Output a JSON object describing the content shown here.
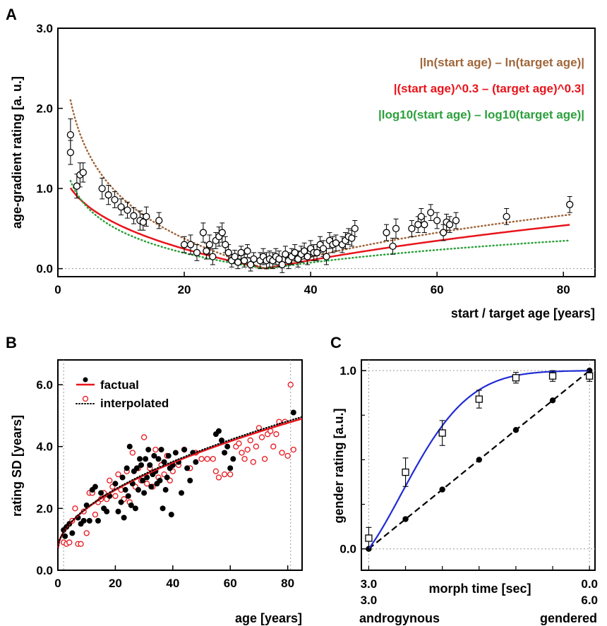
{
  "chart_data": [
    {
      "panel": "A",
      "type": "scatter",
      "xlabel": "start / target age [years]",
      "ylabel": "age-gradient rating [a. u.]",
      "xlim": [
        0,
        85
      ],
      "ylim": [
        -0.1,
        3.0
      ],
      "xticks": [
        0,
        20,
        40,
        60,
        80
      ],
      "yticks": [
        0.0,
        1.0,
        2.0,
        3.0
      ],
      "ytick_labels": [
        "0.0",
        "1.0",
        "2.0",
        "3.0"
      ],
      "target_age": 33,
      "baseline": 0.0,
      "legend_position": "top-right",
      "series": [
        {
          "name": "|ln(start age) – ln(target age)|",
          "kind": "curve",
          "style": "dotted",
          "color": "#a0663a",
          "transform": "ln",
          "scale": 0.75
        },
        {
          "name": "|(start age)^0.3 – (target age)^0.3|",
          "kind": "curve",
          "style": "solid",
          "color": "#e8141b",
          "transform": "pow0.3",
          "scale": 0.62
        },
        {
          "name": "|log10(start age) – log10(target age)|",
          "kind": "curve",
          "style": "dotted",
          "color": "#2ba03b",
          "transform": "log10",
          "scale": 0.9
        }
      ],
      "points": [
        {
          "x": 2,
          "y": 1.45,
          "e": 0.15
        },
        {
          "x": 2,
          "y": 1.67,
          "e": 0.2
        },
        {
          "x": 3,
          "y": 1.03,
          "e": 0.15
        },
        {
          "x": 3.5,
          "y": 1.17,
          "e": 0.15
        },
        {
          "x": 4,
          "y": 1.2,
          "e": 0.12
        },
        {
          "x": 7,
          "y": 1.0,
          "e": 0.13
        },
        {
          "x": 8,
          "y": 0.92,
          "e": 0.12
        },
        {
          "x": 9,
          "y": 0.86,
          "e": 0.1
        },
        {
          "x": 10,
          "y": 0.77,
          "e": 0.1
        },
        {
          "x": 11,
          "y": 0.73,
          "e": 0.1
        },
        {
          "x": 12,
          "y": 0.66,
          "e": 0.1
        },
        {
          "x": 13,
          "y": 0.6,
          "e": 0.12
        },
        {
          "x": 13.5,
          "y": 0.58,
          "e": 0.1
        },
        {
          "x": 14,
          "y": 0.65,
          "e": 0.12
        },
        {
          "x": 16,
          "y": 0.6,
          "e": 0.1
        },
        {
          "x": 20,
          "y": 0.3,
          "e": 0.1
        },
        {
          "x": 21,
          "y": 0.3,
          "e": 0.12
        },
        {
          "x": 22,
          "y": 0.2,
          "e": 0.1
        },
        {
          "x": 23,
          "y": 0.45,
          "e": 0.12
        },
        {
          "x": 23.5,
          "y": 0.22,
          "e": 0.1
        },
        {
          "x": 24,
          "y": 0.3,
          "e": 0.12
        },
        {
          "x": 24.5,
          "y": 0.15,
          "e": 0.1
        },
        {
          "x": 25,
          "y": 0.35,
          "e": 0.1
        },
        {
          "x": 25.5,
          "y": 0.4,
          "e": 0.12
        },
        {
          "x": 26,
          "y": 0.45,
          "e": 0.12
        },
        {
          "x": 26.5,
          "y": 0.3,
          "e": 0.1
        },
        {
          "x": 27,
          "y": 0.2,
          "e": 0.1
        },
        {
          "x": 27.5,
          "y": 0.1,
          "e": 0.08
        },
        {
          "x": 28,
          "y": 0.15,
          "e": 0.08
        },
        {
          "x": 28.5,
          "y": 0.08,
          "e": 0.08
        },
        {
          "x": 29,
          "y": 0.2,
          "e": 0.08
        },
        {
          "x": 29.5,
          "y": 0.1,
          "e": 0.08
        },
        {
          "x": 30,
          "y": 0.22,
          "e": 0.08
        },
        {
          "x": 30.5,
          "y": 0.05,
          "e": 0.08
        },
        {
          "x": 31,
          "y": 0.12,
          "e": 0.08
        },
        {
          "x": 32,
          "y": 0.1,
          "e": 0.1
        },
        {
          "x": 32.5,
          "y": 0.15,
          "e": 0.1
        },
        {
          "x": 33,
          "y": 0.1,
          "e": 0.1
        },
        {
          "x": 33.5,
          "y": 0.12,
          "e": 0.1
        },
        {
          "x": 34,
          "y": 0.1,
          "e": 0.1
        },
        {
          "x": 34.5,
          "y": 0.15,
          "e": 0.1
        },
        {
          "x": 35,
          "y": 0.12,
          "e": 0.1
        },
        {
          "x": 35.5,
          "y": 0.05,
          "e": 0.1
        },
        {
          "x": 36,
          "y": 0.18,
          "e": 0.1
        },
        {
          "x": 36.5,
          "y": 0.1,
          "e": 0.1
        },
        {
          "x": 37,
          "y": 0.15,
          "e": 0.1
        },
        {
          "x": 37.5,
          "y": 0.2,
          "e": 0.1
        },
        {
          "x": 38,
          "y": 0.12,
          "e": 0.1
        },
        {
          "x": 38.5,
          "y": 0.18,
          "e": 0.1
        },
        {
          "x": 39,
          "y": 0.22,
          "e": 0.1
        },
        {
          "x": 39.5,
          "y": 0.15,
          "e": 0.1
        },
        {
          "x": 40,
          "y": 0.25,
          "e": 0.1
        },
        {
          "x": 40.5,
          "y": 0.2,
          "e": 0.1
        },
        {
          "x": 41,
          "y": 0.2,
          "e": 0.1
        },
        {
          "x": 41.5,
          "y": 0.3,
          "e": 0.1
        },
        {
          "x": 42,
          "y": 0.25,
          "e": 0.1
        },
        {
          "x": 42.5,
          "y": 0.15,
          "e": 0.1
        },
        {
          "x": 43,
          "y": 0.35,
          "e": 0.1
        },
        {
          "x": 43.5,
          "y": 0.3,
          "e": 0.1
        },
        {
          "x": 44,
          "y": 0.32,
          "e": 0.1
        },
        {
          "x": 45,
          "y": 0.3,
          "e": 0.1
        },
        {
          "x": 45.5,
          "y": 0.35,
          "e": 0.1
        },
        {
          "x": 46,
          "y": 0.4,
          "e": 0.1
        },
        {
          "x": 46.5,
          "y": 0.38,
          "e": 0.1
        },
        {
          "x": 47,
          "y": 0.5,
          "e": 0.1
        },
        {
          "x": 52,
          "y": 0.45,
          "e": 0.1
        },
        {
          "x": 53,
          "y": 0.28,
          "e": 0.1
        },
        {
          "x": 53.5,
          "y": 0.5,
          "e": 0.12
        },
        {
          "x": 56,
          "y": 0.5,
          "e": 0.1
        },
        {
          "x": 57,
          "y": 0.55,
          "e": 0.1
        },
        {
          "x": 57.5,
          "y": 0.65,
          "e": 0.1
        },
        {
          "x": 58,
          "y": 0.55,
          "e": 0.1
        },
        {
          "x": 59,
          "y": 0.7,
          "e": 0.1
        },
        {
          "x": 60,
          "y": 0.6,
          "e": 0.1
        },
        {
          "x": 61,
          "y": 0.45,
          "e": 0.1
        },
        {
          "x": 61.5,
          "y": 0.58,
          "e": 0.1
        },
        {
          "x": 62,
          "y": 0.55,
          "e": 0.1
        },
        {
          "x": 63,
          "y": 0.6,
          "e": 0.1
        },
        {
          "x": 71,
          "y": 0.65,
          "e": 0.1
        },
        {
          "x": 81,
          "y": 0.8,
          "e": 0.1
        }
      ]
    },
    {
      "panel": "B",
      "type": "scatter",
      "xlabel": "age [years]",
      "ylabel": "rating SD [years]",
      "xlim": [
        0,
        85
      ],
      "ylim": [
        0,
        6.8
      ],
      "xticks": [
        0,
        20,
        40,
        60,
        80
      ],
      "yticks": [
        0.0,
        2.0,
        4.0,
        6.0
      ],
      "ytick_labels": [
        "0.0",
        "2.0",
        "4.0",
        "6.0"
      ],
      "vlines": [
        2,
        81
      ],
      "legend_position": "top-left",
      "legend": [
        {
          "name": "factual",
          "marker": "filled-circle",
          "line": "solid",
          "color": "#e8141b"
        },
        {
          "name": "interpolated",
          "marker": "open-circle",
          "line": "dotted",
          "color": "#000000"
        }
      ],
      "fit_factual": {
        "a": 0.7,
        "b": 0.365,
        "p": 0.55,
        "color": "#e8141b"
      },
      "fit_interpolated": {
        "a": 0.7,
        "b": 0.37,
        "p": 0.55,
        "color": "#000000"
      },
      "factual_points": [
        [
          2,
          1.3
        ],
        [
          2.5,
          1.1
        ],
        [
          3,
          1.4
        ],
        [
          4,
          1.5
        ],
        [
          5,
          1.2
        ],
        [
          7,
          1.7
        ],
        [
          8,
          1.5
        ],
        [
          9,
          1.6
        ],
        [
          10,
          2.1
        ],
        [
          11,
          1.6
        ],
        [
          12,
          2.6
        ],
        [
          13,
          2.7
        ],
        [
          14,
          1.6
        ],
        [
          15,
          2.5
        ],
        [
          16,
          2.0
        ],
        [
          17,
          1.9
        ],
        [
          18,
          2.4
        ],
        [
          20,
          2.8
        ],
        [
          21,
          1.9
        ],
        [
          22,
          2.2
        ],
        [
          22.5,
          3.0
        ],
        [
          23,
          1.7
        ],
        [
          23.5,
          2.6
        ],
        [
          24,
          3.3
        ],
        [
          24.5,
          2.4
        ],
        [
          25,
          4.0
        ],
        [
          25.5,
          2.1
        ],
        [
          26,
          2.8
        ],
        [
          26.5,
          3.2
        ],
        [
          27,
          2.0
        ],
        [
          27.5,
          3.3
        ],
        [
          28,
          2.6
        ],
        [
          28.5,
          3.6
        ],
        [
          29,
          3.4
        ],
        [
          29.5,
          2.9
        ],
        [
          30,
          2.5
        ],
        [
          30.5,
          3.6
        ],
        [
          31,
          3.0
        ],
        [
          31.5,
          3.9
        ],
        [
          32,
          3.4
        ],
        [
          32.5,
          2.7
        ],
        [
          33,
          3.1
        ],
        [
          33.5,
          3.7
        ],
        [
          34,
          3.2
        ],
        [
          34.5,
          2.8
        ],
        [
          35,
          3.6
        ],
        [
          35.5,
          2.9
        ],
        [
          36,
          3.9
        ],
        [
          36.5,
          2.0
        ],
        [
          37,
          3.5
        ],
        [
          37.5,
          2.6
        ],
        [
          38,
          3.0
        ],
        [
          38.5,
          3.7
        ],
        [
          39,
          3.3
        ],
        [
          39.5,
          1.8
        ],
        [
          40,
          3.4
        ],
        [
          41,
          3.8
        ],
        [
          42,
          3.5
        ],
        [
          43,
          2.5
        ],
        [
          44,
          3.9
        ],
        [
          45,
          3.3
        ],
        [
          46,
          2.9
        ],
        [
          47,
          3.8
        ],
        [
          48,
          3.5
        ],
        [
          55,
          4.4
        ],
        [
          56,
          4.5
        ],
        [
          57,
          4.2
        ],
        [
          58,
          3.8
        ],
        [
          59,
          4.0
        ],
        [
          60,
          3.3
        ],
        [
          61,
          3.6
        ],
        [
          82,
          5.1
        ]
      ],
      "interpolated_points": [
        [
          2,
          0.9
        ],
        [
          3,
          0.85
        ],
        [
          4,
          0.9
        ],
        [
          5,
          1.6
        ],
        [
          6,
          2.0
        ],
        [
          7,
          0.85
        ],
        [
          8,
          0.85
        ],
        [
          9,
          1.9
        ],
        [
          10,
          1.2
        ],
        [
          11,
          2.5
        ],
        [
          12,
          2.5
        ],
        [
          13,
          1.8
        ],
        [
          14,
          2.2
        ],
        [
          15,
          2.3
        ],
        [
          16,
          2.5
        ],
        [
          17,
          2.3
        ],
        [
          18,
          2.9
        ],
        [
          19,
          2.7
        ],
        [
          20,
          2.4
        ],
        [
          21,
          3.1
        ],
        [
          22,
          2.6
        ],
        [
          23,
          2.3
        ],
        [
          24,
          3.2
        ],
        [
          25,
          2.2
        ],
        [
          26,
          3.8
        ],
        [
          27,
          2.7
        ],
        [
          28,
          3.3
        ],
        [
          29,
          2.9
        ],
        [
          30,
          4.3
        ],
        [
          31,
          2.8
        ],
        [
          32,
          3.3
        ],
        [
          33,
          2.7
        ],
        [
          34,
          3.9
        ],
        [
          35,
          3.0
        ],
        [
          36,
          3.4
        ],
        [
          37,
          3.1
        ],
        [
          38,
          3.7
        ],
        [
          39,
          2.9
        ],
        [
          40,
          3.2
        ],
        [
          42,
          3.4
        ],
        [
          44,
          3.9
        ],
        [
          46,
          3.3
        ],
        [
          48,
          3.8
        ],
        [
          50,
          3.6
        ],
        [
          52,
          3.6
        ],
        [
          54,
          3.6
        ],
        [
          55,
          3.2
        ],
        [
          56,
          3.0
        ],
        [
          58,
          3.1
        ],
        [
          60,
          3.1
        ],
        [
          62,
          4.0
        ],
        [
          63,
          4.1
        ],
        [
          64,
          3.8
        ],
        [
          65,
          3.6
        ],
        [
          66,
          3.9
        ],
        [
          67,
          4.2
        ],
        [
          68,
          3.5
        ],
        [
          69,
          4.0
        ],
        [
          70,
          4.6
        ],
        [
          71,
          4.3
        ],
        [
          72,
          3.6
        ],
        [
          73,
          4.4
        ],
        [
          74,
          4.5
        ],
        [
          75,
          4.0
        ],
        [
          76,
          4.4
        ],
        [
          77,
          4.8
        ],
        [
          78,
          3.8
        ],
        [
          79,
          4.8
        ],
        [
          80,
          3.7
        ],
        [
          81,
          6.0
        ],
        [
          82,
          3.9
        ]
      ]
    },
    {
      "panel": "C",
      "type": "line",
      "xlabel": "morph time [sec]",
      "ylabel": "gender rating [a.u.]",
      "xlim": [
        -0.2,
        6.15
      ],
      "ylim": [
        -0.12,
        1.06
      ],
      "yticks": [
        0.0,
        1.0
      ],
      "ytick_labels": [
        "0.0",
        "1.0"
      ],
      "x_end_labels": {
        "left_top": "3.0",
        "left_bottom": "3.0",
        "right_top": "0.0",
        "right_bottom": "6.0"
      },
      "x_category_labels": [
        "androgynous",
        "gendered"
      ],
      "series": [
        {
          "name": "",
          "style": "dashed",
          "marker": "filled-circle",
          "color": "#000000",
          "x": [
            0,
            1,
            2,
            3,
            4,
            5,
            6
          ],
          "y": [
            0.0,
            0.167,
            0.333,
            0.5,
            0.667,
            0.833,
            1.0
          ]
        },
        {
          "name": "",
          "style": "solid",
          "marker": "open-square",
          "color": "#1f2bd4",
          "x": [
            0,
            1,
            2,
            3,
            4,
            5,
            6
          ],
          "y": [
            0.06,
            0.43,
            0.65,
            0.84,
            0.96,
            0.97,
            0.97
          ],
          "err": [
            0.06,
            0.08,
            0.07,
            0.05,
            0.03,
            0.03,
            0.03
          ]
        }
      ]
    }
  ]
}
